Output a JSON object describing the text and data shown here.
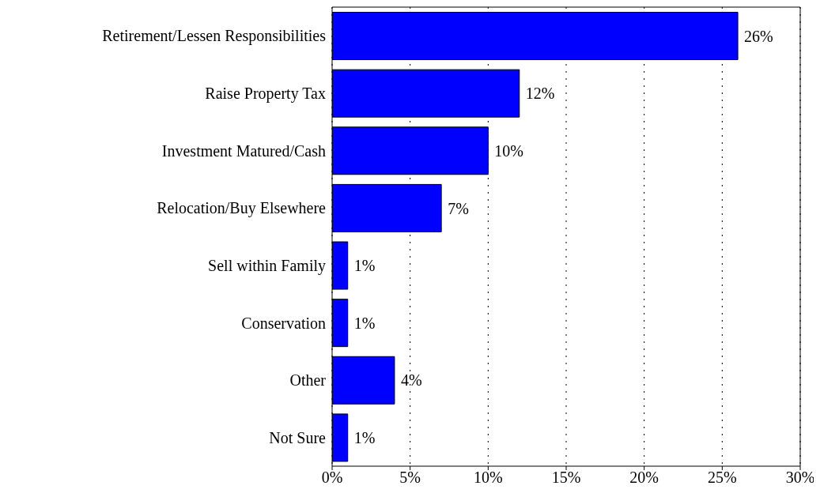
{
  "chart_data": {
    "type": "bar",
    "orientation": "horizontal",
    "categories": [
      "Retirement/Lessen Responsibilities",
      "Raise Property Tax",
      "Investment Matured/Cash",
      "Relocation/Buy Elsewhere",
      "Sell within Family",
      "Conservation",
      "Other",
      "Not Sure"
    ],
    "values": [
      26,
      12,
      10,
      7,
      1,
      1,
      4,
      1
    ],
    "value_labels": [
      "26%",
      "12%",
      "10%",
      "7%",
      "1%",
      "1%",
      "4%",
      "1%"
    ],
    "color": "#0000ff",
    "xlim": [
      0,
      30
    ],
    "xticks": [
      {
        "value": 0,
        "label": "0%"
      },
      {
        "value": 5,
        "label": "5%"
      },
      {
        "value": 10,
        "label": "10%"
      },
      {
        "value": 15,
        "label": "15%"
      },
      {
        "value": 20,
        "label": "20%"
      },
      {
        "value": 25,
        "label": "25%"
      },
      {
        "value": 30,
        "label": "30%"
      }
    ],
    "grid": "x"
  }
}
